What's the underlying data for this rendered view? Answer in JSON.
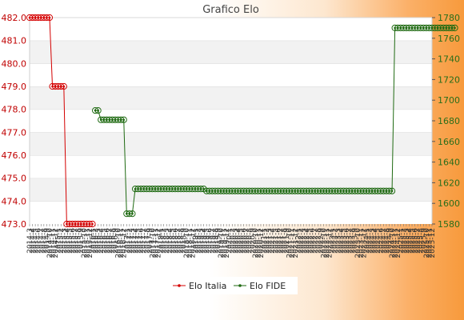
{
  "chart_data": {
    "type": "line",
    "title": "Grafico Elo",
    "xlabel": "",
    "ylabel": "",
    "y_left": {
      "min": 473.0,
      "max": 482.0,
      "ticks": [
        "473.0",
        "474.0",
        "475.0",
        "476.0",
        "477.0",
        "478.0",
        "479.0",
        "480.0",
        "481.0",
        "482.0"
      ]
    },
    "y_right": {
      "min": 1580,
      "max": 1780,
      "ticks": [
        "1580",
        "1600",
        "1620",
        "1640",
        "1660",
        "1680",
        "1700",
        "1720",
        "1740",
        "1760",
        "1780"
      ]
    },
    "x_first": "2014-3",
    "x_last": "2025-12",
    "series": [
      {
        "name": "Elo Italia",
        "axis": "left",
        "color": "#d40000",
        "x_start": 0,
        "values": [
          482,
          482,
          482,
          482,
          482,
          482,
          482,
          482,
          479,
          479,
          479,
          479,
          479,
          473,
          473,
          473,
          473,
          473,
          473,
          473,
          473,
          473,
          473
        ]
      },
      {
        "name": "Elo FIDE",
        "axis": "right",
        "color": "#1f6a12",
        "x_start": 23,
        "values": [
          1690,
          1690,
          1681,
          1681,
          1681,
          1681,
          1681,
          1681,
          1681,
          1681,
          1681,
          1590,
          1590,
          1590,
          1614,
          1614,
          1614,
          1614,
          1614,
          1614,
          1614,
          1614,
          1614,
          1614,
          1614,
          1614,
          1614,
          1614,
          1614,
          1614,
          1614,
          1614,
          1614,
          1614,
          1614,
          1614,
          1614,
          1614,
          1614,
          1612,
          1612,
          1612,
          1612,
          1612,
          1612,
          1612,
          1612,
          1612,
          1612,
          1612,
          1612,
          1612,
          1612,
          1612,
          1612,
          1612,
          1612,
          1612,
          1612,
          1612,
          1612,
          1612,
          1612,
          1612,
          1612,
          1612,
          1612,
          1612,
          1612,
          1612,
          1612,
          1612,
          1612,
          1612,
          1612,
          1612,
          1612,
          1612,
          1612,
          1612,
          1612,
          1612,
          1612,
          1612,
          1612,
          1612,
          1612,
          1612,
          1612,
          1612,
          1612,
          1612,
          1612,
          1612,
          1612,
          1612,
          1612,
          1612,
          1612,
          1612,
          1612,
          1612,
          1612,
          1612,
          1612,
          1770,
          1770,
          1770,
          1770,
          1770,
          1770,
          1770,
          1770,
          1770,
          1770,
          1770,
          1770,
          1770,
          1770,
          1770,
          1770,
          1770,
          1770,
          1770,
          1770,
          1770,
          1770
        ]
      }
    ],
    "legend_position": "bottom-center",
    "grid": true
  }
}
